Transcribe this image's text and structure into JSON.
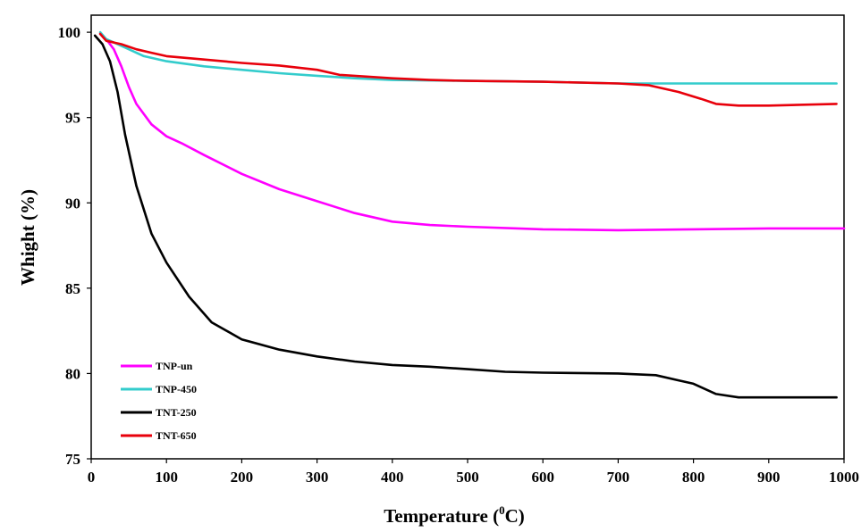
{
  "chart_data": {
    "type": "line",
    "title": "",
    "xlabel": "Temperature (",
    "xlabel_sup": "0",
    "xlabel_tail": "C)",
    "ylabel": "Whight (%)",
    "xlim": [
      0,
      1000
    ],
    "ylim": [
      75,
      101
    ],
    "x_ticks": [
      0,
      100,
      200,
      300,
      400,
      500,
      600,
      700,
      800,
      900,
      1000
    ],
    "x_tick_labels": [
      "0",
      "100",
      "200",
      "300",
      "400",
      "500",
      "600",
      "700",
      "800",
      "900",
      "1000"
    ],
    "y_ticks": [
      75,
      80,
      85,
      90,
      95,
      100
    ],
    "y_tick_labels": [
      "75",
      "80",
      "85",
      "90",
      "95",
      "100"
    ],
    "grid": false,
    "legend_position": "bottom-left",
    "series": [
      {
        "name": "TNP-un",
        "color": "#ff00ff",
        "points": [
          [
            12,
            99.9
          ],
          [
            20,
            99.6
          ],
          [
            30,
            99.0
          ],
          [
            40,
            98.0
          ],
          [
            50,
            96.8
          ],
          [
            60,
            95.8
          ],
          [
            80,
            94.6
          ],
          [
            100,
            93.9
          ],
          [
            120,
            93.5
          ],
          [
            150,
            92.8
          ],
          [
            200,
            91.7
          ],
          [
            250,
            90.8
          ],
          [
            300,
            90.1
          ],
          [
            350,
            89.4
          ],
          [
            400,
            88.9
          ],
          [
            450,
            88.7
          ],
          [
            500,
            88.6
          ],
          [
            600,
            88.45
          ],
          [
            700,
            88.4
          ],
          [
            800,
            88.45
          ],
          [
            900,
            88.5
          ],
          [
            1000,
            88.5
          ]
        ]
      },
      {
        "name": "TNP-450",
        "color": "#33cccc",
        "points": [
          [
            12,
            100.0
          ],
          [
            20,
            99.6
          ],
          [
            30,
            99.4
          ],
          [
            50,
            99.0
          ],
          [
            70,
            98.6
          ],
          [
            100,
            98.3
          ],
          [
            150,
            98.0
          ],
          [
            200,
            97.8
          ],
          [
            250,
            97.6
          ],
          [
            300,
            97.45
          ],
          [
            350,
            97.3
          ],
          [
            400,
            97.2
          ],
          [
            500,
            97.15
          ],
          [
            600,
            97.1
          ],
          [
            700,
            97.0
          ],
          [
            800,
            97.0
          ],
          [
            900,
            97.0
          ],
          [
            990,
            97.0
          ]
        ]
      },
      {
        "name": "TNT-250",
        "color": "#000000",
        "points": [
          [
            5,
            99.8
          ],
          [
            15,
            99.3
          ],
          [
            25,
            98.3
          ],
          [
            35,
            96.5
          ],
          [
            45,
            94.0
          ],
          [
            60,
            91.0
          ],
          [
            80,
            88.2
          ],
          [
            100,
            86.5
          ],
          [
            130,
            84.5
          ],
          [
            160,
            83.0
          ],
          [
            200,
            82.0
          ],
          [
            250,
            81.4
          ],
          [
            300,
            81.0
          ],
          [
            350,
            80.7
          ],
          [
            400,
            80.5
          ],
          [
            450,
            80.4
          ],
          [
            500,
            80.25
          ],
          [
            550,
            80.1
          ],
          [
            600,
            80.05
          ],
          [
            700,
            80.0
          ],
          [
            750,
            79.9
          ],
          [
            800,
            79.4
          ],
          [
            830,
            78.8
          ],
          [
            860,
            78.6
          ],
          [
            900,
            78.6
          ],
          [
            990,
            78.6
          ]
        ]
      },
      {
        "name": "TNT-650",
        "color": "#e8000b",
        "points": [
          [
            12,
            99.9
          ],
          [
            20,
            99.5
          ],
          [
            40,
            99.3
          ],
          [
            60,
            99.0
          ],
          [
            80,
            98.8
          ],
          [
            100,
            98.6
          ],
          [
            150,
            98.4
          ],
          [
            200,
            98.2
          ],
          [
            250,
            98.05
          ],
          [
            300,
            97.8
          ],
          [
            330,
            97.5
          ],
          [
            400,
            97.3
          ],
          [
            450,
            97.2
          ],
          [
            500,
            97.15
          ],
          [
            600,
            97.1
          ],
          [
            700,
            97.0
          ],
          [
            740,
            96.9
          ],
          [
            780,
            96.5
          ],
          [
            810,
            96.1
          ],
          [
            830,
            95.8
          ],
          [
            860,
            95.7
          ],
          [
            900,
            95.7
          ],
          [
            990,
            95.8
          ]
        ]
      }
    ]
  }
}
